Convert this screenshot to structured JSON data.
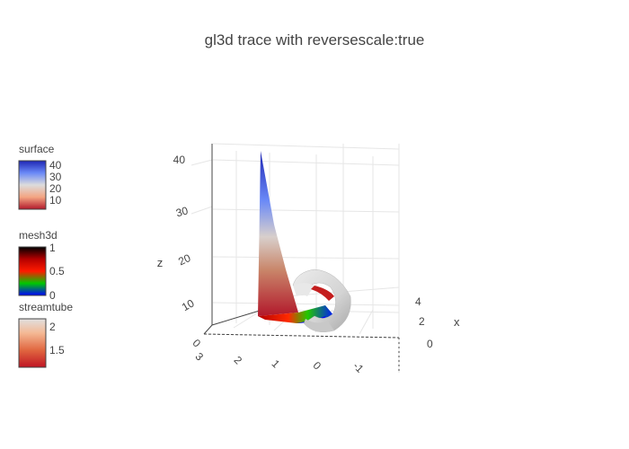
{
  "chart_data": {
    "type": "3d-surface-mesh-streamtube",
    "title": "gl3d trace with reversescale:true",
    "scene": {
      "x": {
        "title": "x",
        "ticks": [
          "0",
          "2",
          "4"
        ]
      },
      "y": {
        "title": "",
        "ticks": [
          "3",
          "2",
          "1",
          "0",
          "-1"
        ]
      },
      "z": {
        "title": "z",
        "ticks": [
          "10",
          "20",
          "30",
          "40"
        ]
      }
    },
    "colorbars": [
      {
        "title": "surface",
        "ticks": [
          "40",
          "30",
          "20",
          "10"
        ],
        "colors": [
          "#1e26b4",
          "#6a89f7",
          "#dcdcdc",
          "#f4a582",
          "#b2182b"
        ]
      },
      {
        "title": "mesh3d",
        "ticks": [
          "1",
          "0.5",
          "0"
        ],
        "colors": [
          "#000000",
          "#b40000",
          "#ff0000",
          "#00c800",
          "#0000ff"
        ]
      },
      {
        "title": "streamtube",
        "ticks": [
          "2",
          "1.5"
        ],
        "colors": [
          "#e0e0e0",
          "#f4b793",
          "#e0663f",
          "#c01524"
        ]
      }
    ],
    "grid": true,
    "legend": "left"
  }
}
